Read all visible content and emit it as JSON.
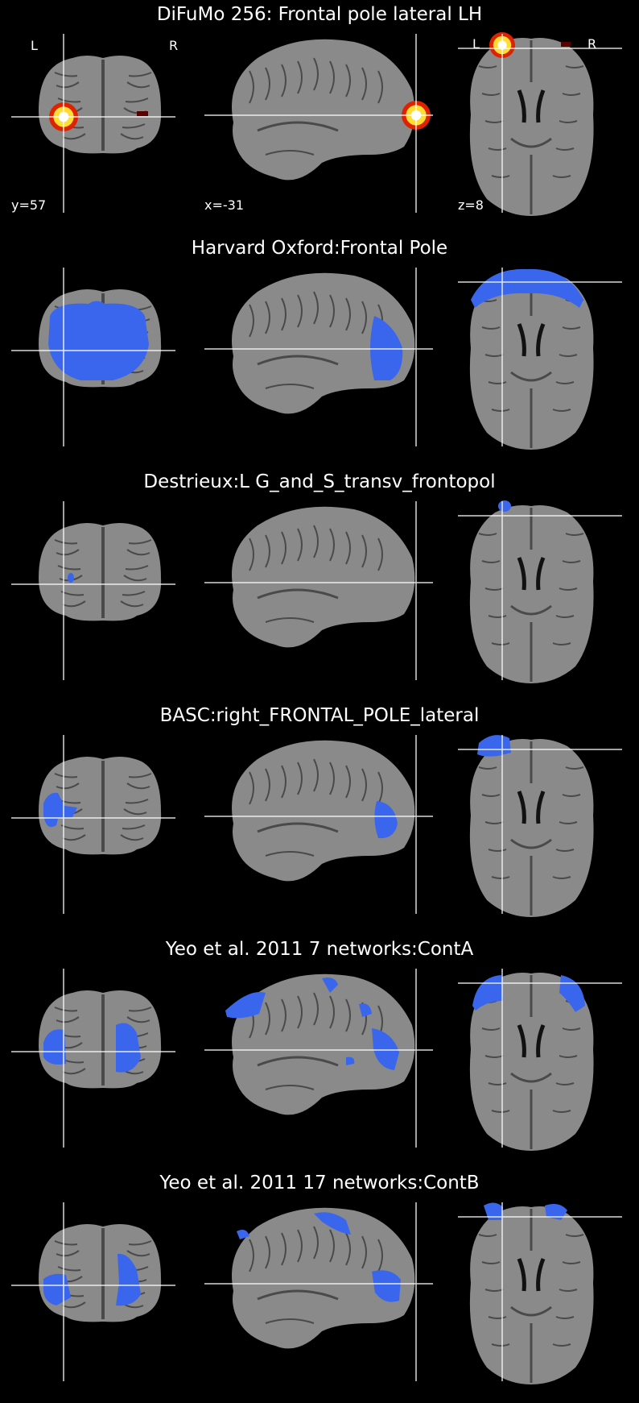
{
  "figure": {
    "panels": [
      {
        "title": "DiFuMo 256: Frontal pole lateral LH",
        "colormap": "hot",
        "show_orientation": true,
        "orientation_labels": {
          "left": "L",
          "right": "R"
        },
        "show_coords": true,
        "coords": {
          "coronal": "y=57",
          "sagittal": "x=-31",
          "axial": "z=8"
        }
      },
      {
        "title": "Harvard Oxford:Frontal Pole",
        "colormap": "blue",
        "show_orientation": false,
        "show_coords": false
      },
      {
        "title": "Destrieux:L G_and_S_transv_frontopol",
        "colormap": "blue",
        "show_orientation": false,
        "show_coords": false
      },
      {
        "title": "BASC:right_FRONTAL_POLE_lateral",
        "colormap": "blue",
        "show_orientation": false,
        "show_coords": false
      },
      {
        "title": "Yeo et al. 2011 7 networks:ContA",
        "colormap": "blue",
        "show_orientation": false,
        "show_coords": false
      },
      {
        "title": "Yeo et al. 2011 17 networks:ContB",
        "colormap": "blue",
        "show_orientation": false,
        "show_coords": false
      }
    ],
    "colors": {
      "background": "#000000",
      "brain": "#8a8a8a",
      "sulci": "#4a4a4a",
      "overlay_blue": "#3a66ee",
      "crosshair": "#ffffff",
      "hot_core": "#ffffff",
      "hot_mid": "#ffdd33",
      "hot_outer": "#dd2200"
    }
  }
}
